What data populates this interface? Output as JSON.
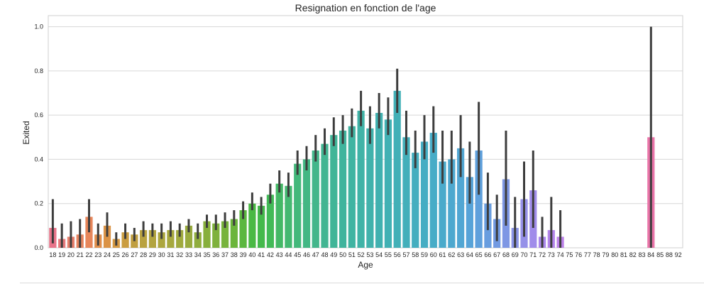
{
  "chart_data": {
    "type": "bar",
    "title": "Resignation en fonction de l'age",
    "xlabel": "Age",
    "ylabel": "Exited",
    "ylim": [
      0,
      1.05
    ],
    "yticks": [
      "0.0",
      "0.2",
      "0.4",
      "0.6",
      "0.8",
      "1.0"
    ],
    "grid": true,
    "categories": [
      "18",
      "19",
      "20",
      "21",
      "22",
      "23",
      "24",
      "25",
      "26",
      "27",
      "28",
      "29",
      "30",
      "31",
      "32",
      "33",
      "34",
      "35",
      "36",
      "37",
      "38",
      "39",
      "40",
      "41",
      "42",
      "43",
      "44",
      "45",
      "46",
      "47",
      "48",
      "49",
      "50",
      "51",
      "52",
      "53",
      "54",
      "55",
      "56",
      "57",
      "58",
      "59",
      "60",
      "61",
      "62",
      "63",
      "64",
      "65",
      "66",
      "67",
      "68",
      "69",
      "70",
      "71",
      "72",
      "73",
      "74",
      "75",
      "76",
      "77",
      "78",
      "79",
      "80",
      "81",
      "82",
      "83",
      "84",
      "85",
      "88",
      "92"
    ],
    "values": [
      0.09,
      0.04,
      0.05,
      0.06,
      0.14,
      0.06,
      0.1,
      0.04,
      0.07,
      0.06,
      0.08,
      0.08,
      0.07,
      0.08,
      0.08,
      0.1,
      0.07,
      0.12,
      0.11,
      0.12,
      0.13,
      0.17,
      0.2,
      0.19,
      0.24,
      0.29,
      0.28,
      0.38,
      0.4,
      0.44,
      0.47,
      0.51,
      0.53,
      0.55,
      0.62,
      0.54,
      0.61,
      0.58,
      0.71,
      0.5,
      0.43,
      0.48,
      0.52,
      0.39,
      0.4,
      0.45,
      0.32,
      0.44,
      0.2,
      0.13,
      0.31,
      0.09,
      0.22,
      0.26,
      0.05,
      0.08,
      0.05,
      0,
      0,
      0,
      0,
      0,
      0,
      0,
      0,
      0,
      0.5,
      0,
      0,
      0
    ],
    "ci_low": [
      0.02,
      0.0,
      0.0,
      0.0,
      0.07,
      0.01,
      0.05,
      0.01,
      0.04,
      0.03,
      0.05,
      0.05,
      0.04,
      0.05,
      0.05,
      0.07,
      0.04,
      0.09,
      0.08,
      0.09,
      0.1,
      0.13,
      0.17,
      0.15,
      0.2,
      0.25,
      0.23,
      0.33,
      0.35,
      0.39,
      0.42,
      0.46,
      0.47,
      0.5,
      0.55,
      0.47,
      0.54,
      0.51,
      0.61,
      0.42,
      0.36,
      0.4,
      0.43,
      0.29,
      0.29,
      0.32,
      0.2,
      0.24,
      0.08,
      0.03,
      0.1,
      0.0,
      0.05,
      0.09,
      0.0,
      0.0,
      0.0,
      0,
      0,
      0,
      0,
      0,
      0,
      0,
      0,
      0,
      0.0,
      0,
      0,
      0
    ],
    "ci_high": [
      0.22,
      0.11,
      0.12,
      0.13,
      0.22,
      0.11,
      0.16,
      0.07,
      0.11,
      0.09,
      0.12,
      0.11,
      0.11,
      0.12,
      0.11,
      0.13,
      0.11,
      0.15,
      0.15,
      0.16,
      0.17,
      0.21,
      0.25,
      0.23,
      0.29,
      0.35,
      0.34,
      0.44,
      0.46,
      0.51,
      0.54,
      0.59,
      0.6,
      0.63,
      0.71,
      0.64,
      0.7,
      0.68,
      0.81,
      0.62,
      0.53,
      0.6,
      0.64,
      0.53,
      0.53,
      0.6,
      0.48,
      0.66,
      0.34,
      0.24,
      0.53,
      0.23,
      0.39,
      0.44,
      0.14,
      0.23,
      0.17,
      0,
      0,
      0,
      0,
      0,
      0,
      0,
      0,
      0,
      1.0,
      0,
      0,
      0
    ],
    "colors": [
      "#e8748a",
      "#e77a7d",
      "#e67f6c",
      "#e5845f",
      "#e7865a",
      "#e08f4c",
      "#db9346",
      "#d49842",
      "#ca9d41",
      "#c09f40",
      "#b9a240",
      "#b2a43f",
      "#aca63e",
      "#a6a83e",
      "#a0aa3e",
      "#99ab3e",
      "#90ad3d",
      "#87af3c",
      "#7fb13c",
      "#77b33c",
      "#6bb53b",
      "#5bb73f",
      "#4ab944",
      "#44b94b",
      "#42ba57",
      "#44b866",
      "#44b871",
      "#43b87b",
      "#43b784",
      "#43b68b",
      "#42b592",
      "#41b598",
      "#40b49d",
      "#40b4a2",
      "#40b3a7",
      "#41b2ac",
      "#41b1b0",
      "#41b1b4",
      "#42b0b7",
      "#43afba",
      "#44aebf",
      "#45adc3",
      "#47acc7",
      "#4aaacb",
      "#4da8cf",
      "#51a6d3",
      "#57a3d8",
      "#5fa0dc",
      "#689ddf",
      "#729ae2",
      "#7e97e4",
      "#8a94e6",
      "#9590e8",
      "#a08cea",
      "#aa88eb",
      "#b385ea",
      "#bc82e8",
      "#c57fe4",
      "#cc7de0",
      "#d37bdc",
      "#d97ad6",
      "#de79d0",
      "#e277c9",
      "#e576c2",
      "#e775bb",
      "#e874b3",
      "#e974a8",
      "#e974a0",
      "#e97498",
      "#e97490"
    ]
  }
}
